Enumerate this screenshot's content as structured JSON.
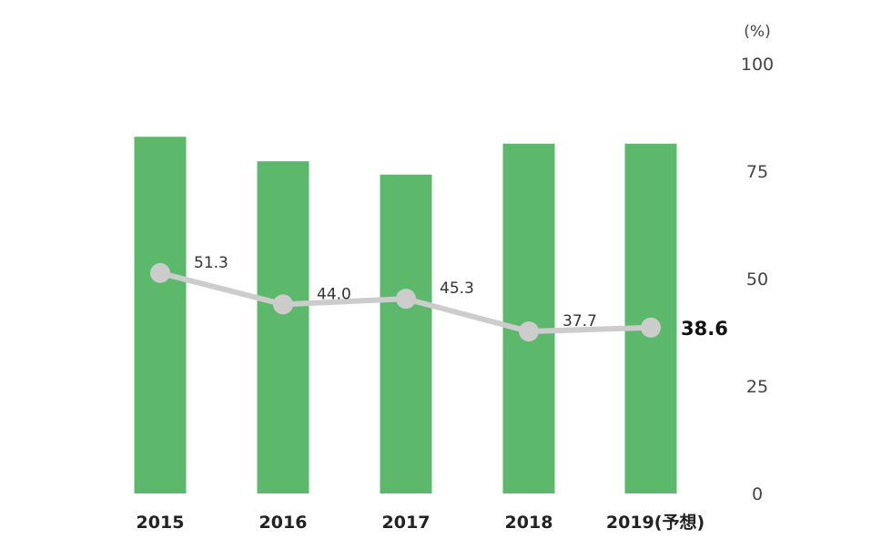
{
  "chart_data": {
    "type": "bar+line",
    "categories": [
      "2015",
      "2016",
      "2017",
      "2018",
      "2019(予想)"
    ],
    "bar_series": {
      "values_estimated": [
        83.0,
        77.3,
        74.2,
        81.4,
        81.4
      ],
      "color": "#5cb86a"
    },
    "line_series": {
      "values": [
        51.3,
        44.0,
        45.3,
        37.7,
        38.6
      ],
      "labels": [
        "51.3",
        "44.0",
        "45.3",
        "37.7",
        "38.6"
      ],
      "color": "#cccccc"
    },
    "y_axis": {
      "position": "right",
      "unit": "(%)",
      "ylim": [
        0,
        100
      ],
      "ticks": [
        "0",
        "25",
        "50",
        "75",
        "100"
      ]
    },
    "grid": false,
    "legend": "none"
  }
}
